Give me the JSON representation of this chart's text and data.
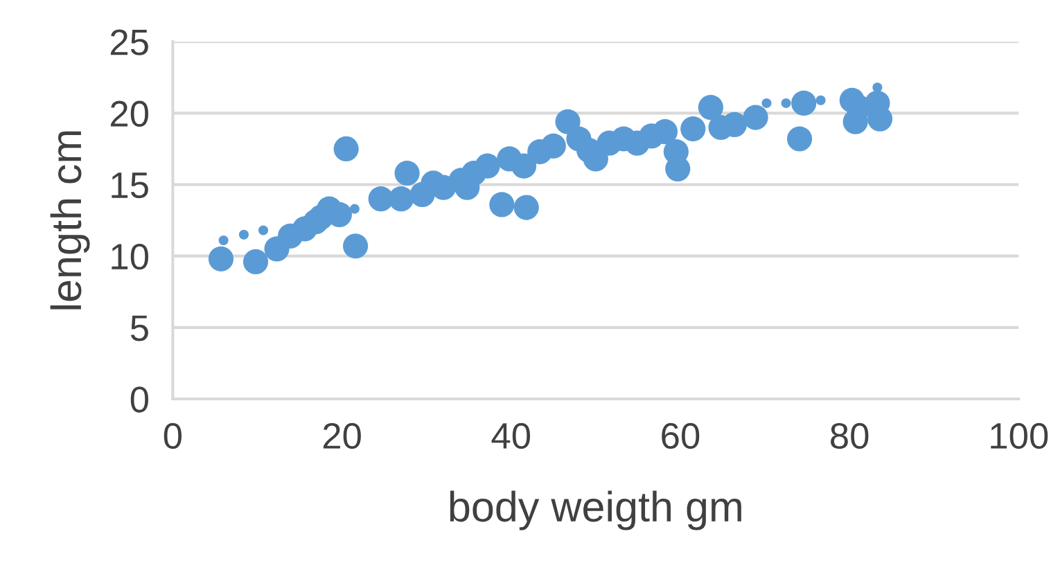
{
  "chart_data": {
    "type": "bubble",
    "xlabel": "body weigth gm",
    "ylabel": "length cm",
    "xlim": [
      0,
      100
    ],
    "xticks": [
      0,
      20,
      40,
      60,
      80,
      100
    ],
    "ylim": [
      0,
      25
    ],
    "yticks": [
      0,
      5,
      10,
      15,
      20,
      25
    ],
    "grid": "y",
    "series": [
      {
        "color": "#5b9bd5",
        "x": [
          5.7,
          9.8,
          12.3,
          13.9,
          15.6,
          16.9,
          18.5,
          17.5,
          19.7,
          20.5,
          21.6,
          24.6,
          27,
          27.7,
          29.5,
          30.8,
          32,
          34.1,
          35.6,
          34.8,
          38.9,
          41.8,
          37.2,
          39.8,
          41.5,
          43.4,
          45,
          46.7,
          48,
          49.2,
          50,
          51.6,
          53.3,
          54.9,
          56.6,
          58.2,
          59.5,
          59.7,
          61.5,
          63.6,
          64.8,
          66.4,
          68.9,
          74.1,
          74.6,
          80.3,
          80.7,
          83.3,
          83.6,
          81.1,
          6,
          8.4,
          10.7,
          21.5,
          70.2,
          72.5,
          76.6,
          83.3
        ],
        "values": [
          9.8,
          9.6,
          10.5,
          11.4,
          11.9,
          12.4,
          13.3,
          12.7,
          12.9,
          17.5,
          10.7,
          14.0,
          14.0,
          15.8,
          14.3,
          15.1,
          14.8,
          15.3,
          15.8,
          14.8,
          13.6,
          13.4,
          16.3,
          16.8,
          16.3,
          17.3,
          17.7,
          19.4,
          18.2,
          17.4,
          16.8,
          17.9,
          18.2,
          17.9,
          18.4,
          18.7,
          17.3,
          16.1,
          18.9,
          20.4,
          19.0,
          19.2,
          19.7,
          18.2,
          20.7,
          20.9,
          19.4,
          20.7,
          19.6,
          20.4,
          11.1,
          11.5,
          11.8,
          13.3,
          20.7,
          20.7,
          20.9,
          21.8
        ],
        "sizes": [
          1,
          1,
          1,
          1,
          1,
          1,
          1,
          1,
          1,
          1,
          1,
          1,
          1,
          1,
          1,
          1,
          1,
          1,
          1,
          1,
          1,
          1,
          1,
          1,
          1,
          1,
          1,
          1,
          1,
          1,
          1,
          1,
          1,
          1,
          1,
          1,
          1,
          1,
          1,
          1,
          1,
          1,
          1,
          1,
          1,
          1,
          1,
          1,
          1,
          1,
          0.15,
          0.15,
          0.15,
          0.15,
          0.15,
          0.15,
          0.15,
          0.15
        ]
      }
    ]
  }
}
